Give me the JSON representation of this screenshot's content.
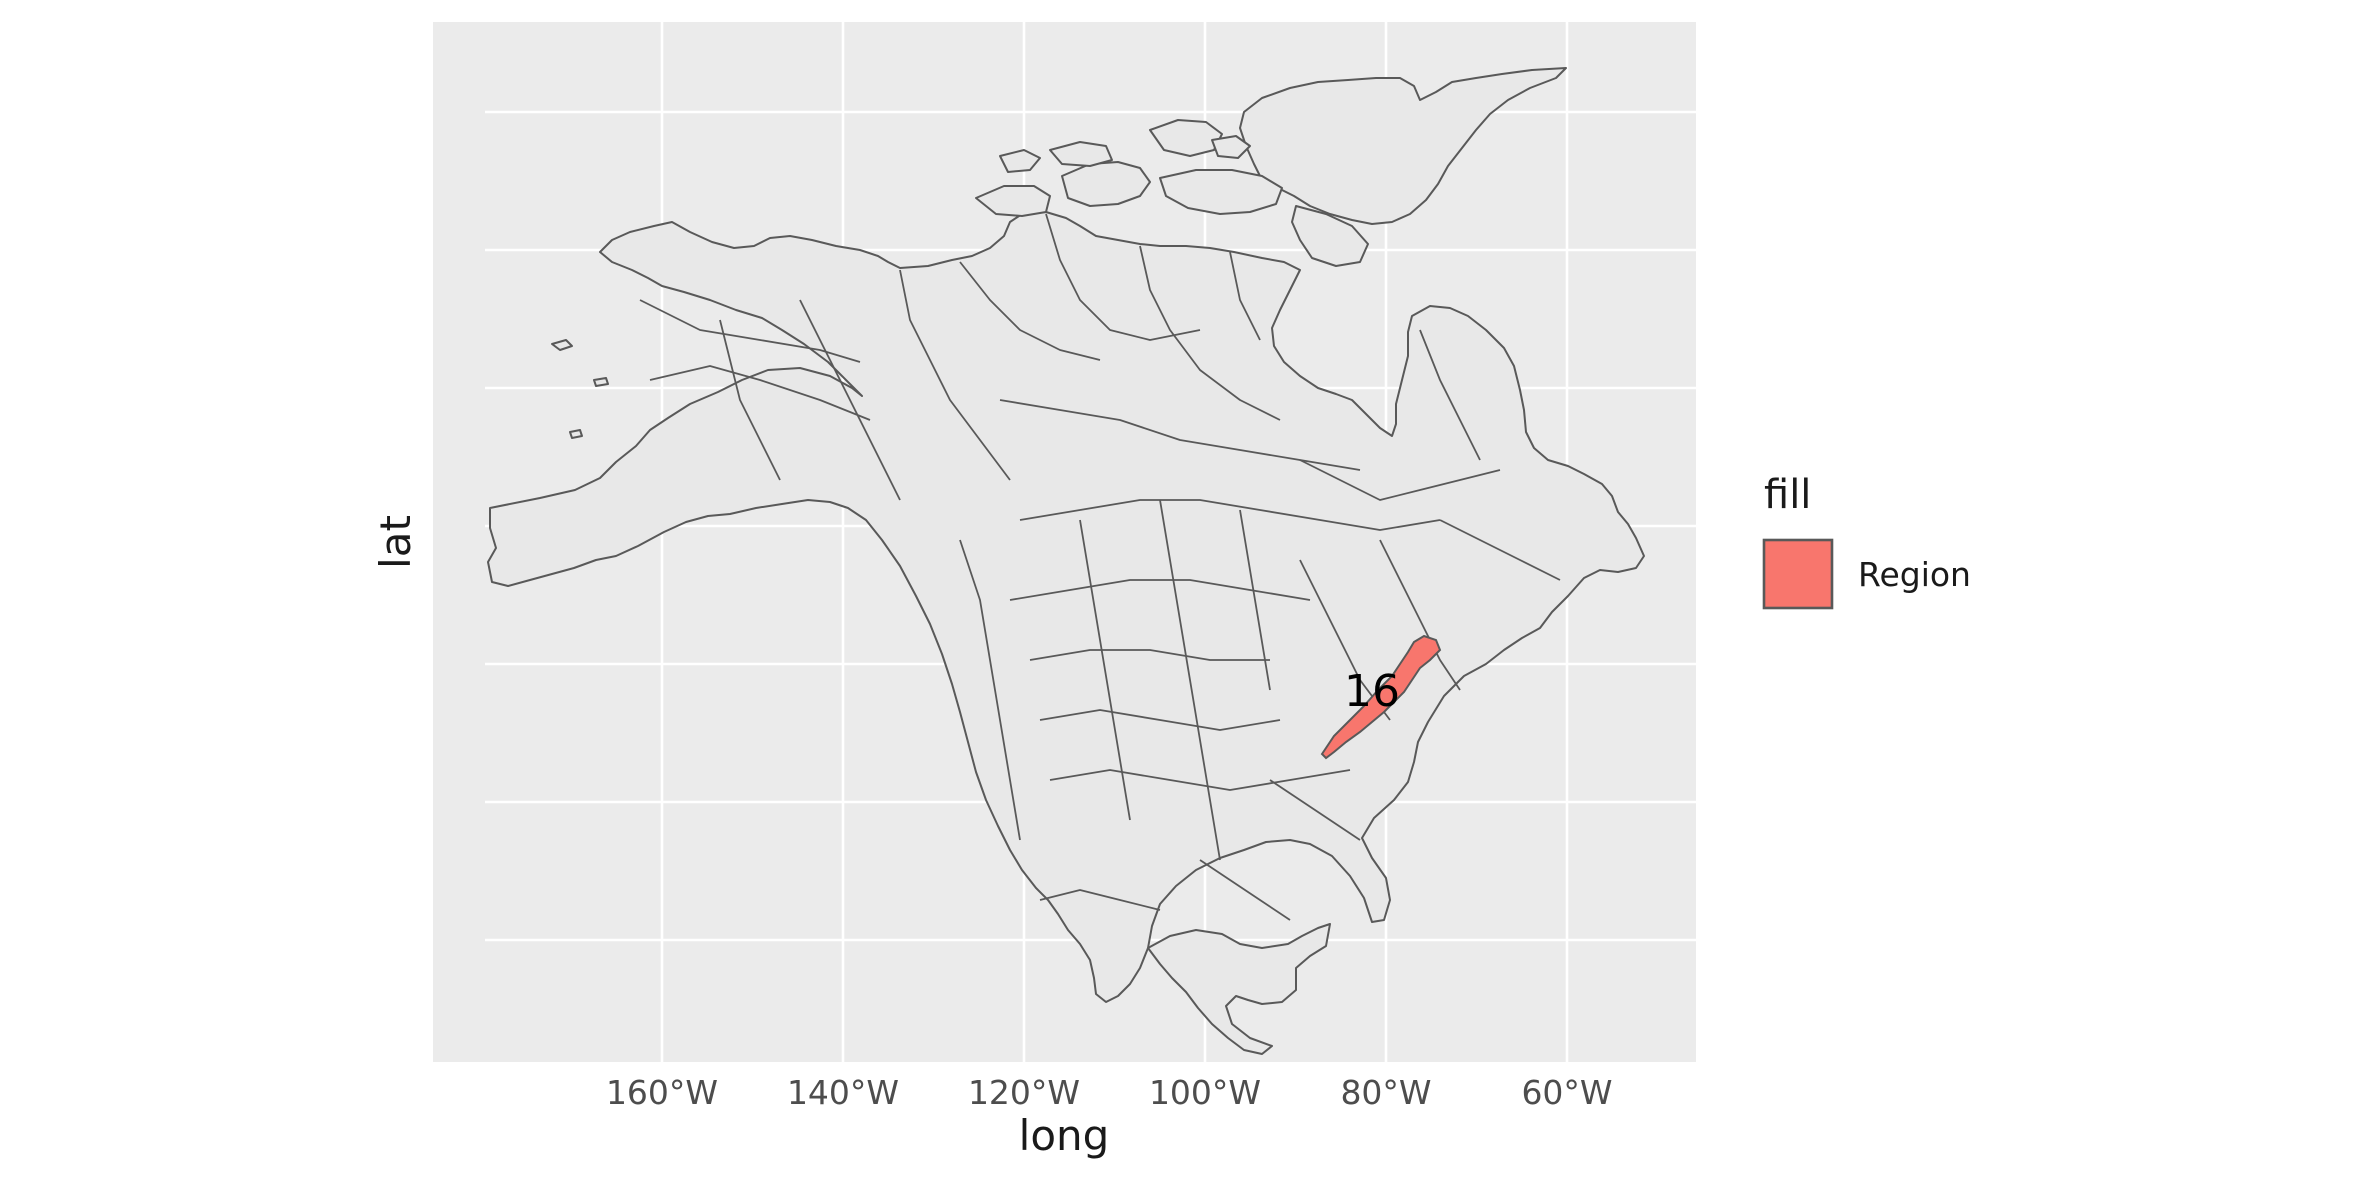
{
  "axes": {
    "xlabel": "long",
    "ylabel": "lat",
    "x_ticks": [
      {
        "value": -160,
        "label": "160°W"
      },
      {
        "value": -140,
        "label": "140°W"
      },
      {
        "value": -120,
        "label": "120°W"
      },
      {
        "value": -100,
        "label": "100°W"
      },
      {
        "value": -80,
        "label": "80°W"
      },
      {
        "value": -60,
        "label": "60°W"
      }
    ]
  },
  "legend": {
    "title": "fill",
    "items": [
      {
        "label": "Region",
        "color": "#F8766D"
      }
    ]
  },
  "highlighted_region": {
    "label": "16",
    "fill": "#F8766D"
  },
  "colors": {
    "panel_background": "#EBEBEB",
    "grid": "#FFFFFF",
    "land": "#E8E8E8",
    "outline": "#595959",
    "highlight": "#F8766D"
  }
}
